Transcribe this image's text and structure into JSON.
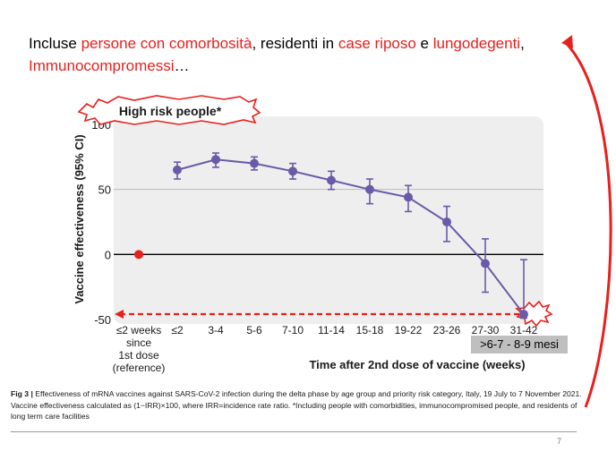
{
  "headline": {
    "part1": "Incluse ",
    "hl1": "persone con comorbosità",
    "part2": ", residenti in ",
    "hl2": "case riposo",
    "part3": " e ",
    "hl3": "lungodegenti",
    "part4": ",",
    "hl4": "Immunocompromessi",
    "part5": "…"
  },
  "badge_label": "High risk people*",
  "range_label": ">6-7 - 8-9 mesi",
  "caption": {
    "fig_label": "Fig 3 |",
    "text": " Effectiveness of mRNA vaccines against SARS-CoV-2 infection during the delta phase by age group and priority risk category, Italy, 19 July to 7 November 2021. Vaccine effectiveness calculated as (1−IRR)×100, where IRR=incidence rate ratio. *Including people with comorbidities, immunocompromised people, and residents of long term care facilities"
  },
  "page_number": "7",
  "colors": {
    "accent": "#e8201d",
    "series": "#6a5aa8",
    "plot_bg": "#eeeeee",
    "gridline": "#bbbbbb",
    "badge_grey": "#bfbfbf"
  },
  "chart_data": {
    "type": "line",
    "title": "",
    "xlabel": "Time after 2nd dose of vaccine (weeks)",
    "ylabel": "Vaccine effectiveness (95% CI)",
    "ylim": [
      -50,
      100
    ],
    "yticks": [
      100,
      50,
      0,
      -50
    ],
    "categories": [
      "≤2",
      "3-4",
      "5-6",
      "7-10",
      "11-14",
      "15-18",
      "19-22",
      "23-26",
      "27-30",
      "31-42"
    ],
    "reference": {
      "label_lines": [
        "≤2 weeks",
        "since",
        "1st dose",
        "(reference)"
      ],
      "value": 0
    },
    "series": [
      {
        "name": "High risk people*",
        "values": [
          65,
          73,
          70,
          64,
          57,
          50,
          44,
          25,
          -7,
          -46
        ],
        "ci_low": [
          58,
          67,
          65,
          58,
          50,
          39,
          33,
          10,
          -29,
          -49
        ],
        "ci_high": [
          71,
          78,
          75,
          70,
          64,
          58,
          53,
          37,
          12,
          -4
        ]
      }
    ]
  }
}
